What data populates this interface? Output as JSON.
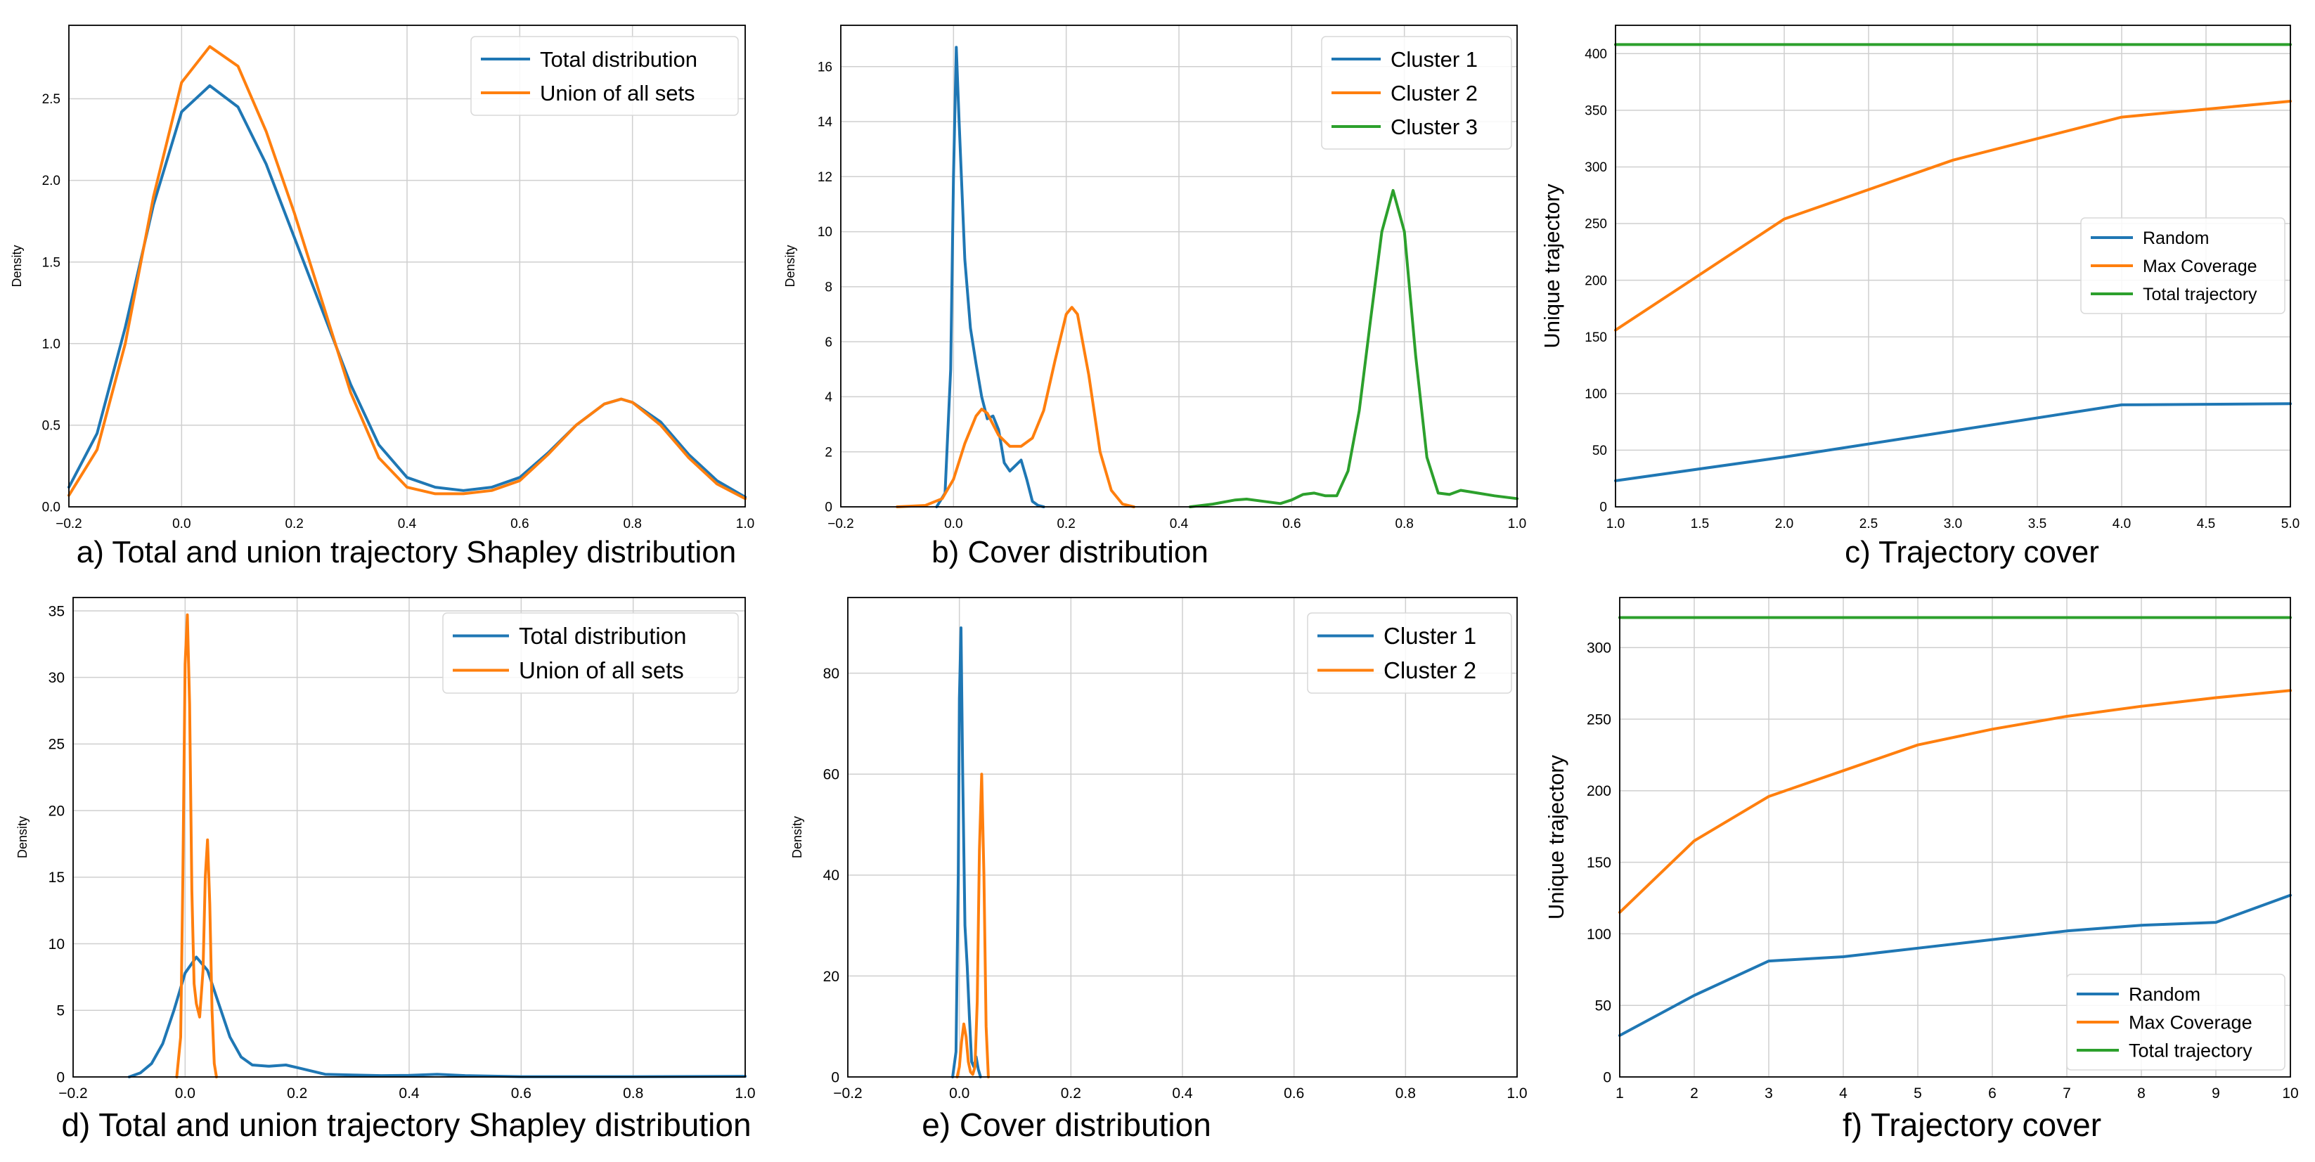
{
  "colors": {
    "blue": "#1f77b4",
    "orange": "#ff7f0e",
    "green": "#2ca02c",
    "grid": "#cfcfcf",
    "axis": "#000000"
  },
  "chart_data": [
    {
      "id": "a",
      "type": "line",
      "caption": "a) Total and union trajectory Shapley distribution",
      "xlabel": "",
      "ylabel": "Density",
      "xlim": [
        -0.2,
        1.0
      ],
      "ylim": [
        0,
        2.95
      ],
      "xticks": [
        -0.2,
        0.0,
        0.2,
        0.4,
        0.6,
        0.8,
        1.0
      ],
      "xtick_labels": [
        "−0.2",
        "0.0",
        "0.2",
        "0.4",
        "0.6",
        "0.8",
        "1.0"
      ],
      "yticks": [
        0.0,
        0.5,
        1.0,
        1.5,
        2.0,
        2.5
      ],
      "ytick_labels": [
        "0.0",
        "0.5",
        "1.0",
        "1.5",
        "2.0",
        "2.5"
      ],
      "legend": "top-right",
      "series": [
        {
          "name": "Total distribution",
          "color": "blue",
          "x": [
            -0.2,
            -0.15,
            -0.1,
            -0.05,
            0.0,
            0.05,
            0.1,
            0.15,
            0.2,
            0.25,
            0.3,
            0.35,
            0.4,
            0.45,
            0.5,
            0.55,
            0.6,
            0.65,
            0.7,
            0.75,
            0.78,
            0.8,
            0.85,
            0.9,
            0.95,
            1.0
          ],
          "y": [
            0.12,
            0.45,
            1.1,
            1.85,
            2.42,
            2.58,
            2.45,
            2.1,
            1.65,
            1.2,
            0.75,
            0.38,
            0.18,
            0.12,
            0.1,
            0.12,
            0.18,
            0.33,
            0.5,
            0.63,
            0.66,
            0.64,
            0.52,
            0.32,
            0.16,
            0.06
          ]
        },
        {
          "name": "Union of all sets",
          "color": "orange",
          "x": [
            -0.2,
            -0.15,
            -0.1,
            -0.05,
            0.0,
            0.05,
            0.1,
            0.15,
            0.2,
            0.25,
            0.3,
            0.35,
            0.4,
            0.45,
            0.5,
            0.55,
            0.6,
            0.65,
            0.7,
            0.75,
            0.78,
            0.8,
            0.85,
            0.9,
            0.95,
            1.0
          ],
          "y": [
            0.07,
            0.35,
            1.0,
            1.9,
            2.6,
            2.82,
            2.7,
            2.3,
            1.8,
            1.25,
            0.7,
            0.3,
            0.12,
            0.08,
            0.08,
            0.1,
            0.16,
            0.32,
            0.5,
            0.63,
            0.66,
            0.64,
            0.5,
            0.3,
            0.14,
            0.05
          ]
        }
      ]
    },
    {
      "id": "b",
      "type": "line",
      "caption": "b) Cover distribution",
      "xlabel": "",
      "ylabel": "Density",
      "xlim": [
        -0.2,
        1.0
      ],
      "ylim": [
        0,
        17.5
      ],
      "xticks": [
        -0.2,
        0.0,
        0.2,
        0.4,
        0.6,
        0.8,
        1.0
      ],
      "xtick_labels": [
        "−0.2",
        "0.0",
        "0.2",
        "0.4",
        "0.6",
        "0.8",
        "1.0"
      ],
      "yticks": [
        0,
        2,
        4,
        6,
        8,
        10,
        12,
        14,
        16
      ],
      "ytick_labels": [
        "0",
        "2",
        "4",
        "6",
        "8",
        "10",
        "12",
        "14",
        "16"
      ],
      "legend": "top-right",
      "series": [
        {
          "name": "Cluster 1",
          "color": "blue",
          "x": [
            -0.03,
            -0.015,
            -0.005,
            0.0,
            0.005,
            0.01,
            0.02,
            0.03,
            0.04,
            0.05,
            0.06,
            0.07,
            0.08,
            0.09,
            0.1,
            0.11,
            0.12,
            0.13,
            0.14,
            0.15,
            0.16
          ],
          "y": [
            0,
            0.5,
            5.0,
            12.0,
            16.7,
            14.0,
            9.0,
            6.5,
            5.2,
            4.0,
            3.2,
            3.3,
            2.8,
            1.6,
            1.3,
            1.5,
            1.7,
            1.0,
            0.2,
            0.05,
            0
          ]
        },
        {
          "name": "Cluster 2",
          "color": "orange",
          "x": [
            -0.1,
            -0.05,
            -0.02,
            0.0,
            0.02,
            0.04,
            0.05,
            0.06,
            0.08,
            0.1,
            0.12,
            0.14,
            0.16,
            0.18,
            0.2,
            0.21,
            0.22,
            0.24,
            0.26,
            0.28,
            0.3,
            0.32
          ],
          "y": [
            0,
            0.05,
            0.3,
            1.0,
            2.3,
            3.3,
            3.55,
            3.4,
            2.6,
            2.2,
            2.2,
            2.5,
            3.5,
            5.3,
            7.0,
            7.25,
            7.0,
            4.8,
            2.0,
            0.6,
            0.1,
            0
          ]
        },
        {
          "name": "Cluster 3",
          "color": "green",
          "x": [
            0.42,
            0.46,
            0.5,
            0.52,
            0.55,
            0.58,
            0.6,
            0.62,
            0.64,
            0.66,
            0.68,
            0.7,
            0.72,
            0.74,
            0.76,
            0.78,
            0.8,
            0.82,
            0.84,
            0.86,
            0.88,
            0.9,
            0.93,
            0.96,
            1.0
          ],
          "y": [
            0,
            0.1,
            0.25,
            0.28,
            0.2,
            0.12,
            0.25,
            0.45,
            0.5,
            0.4,
            0.4,
            1.3,
            3.5,
            6.8,
            10.0,
            11.5,
            10.0,
            5.5,
            1.8,
            0.5,
            0.45,
            0.6,
            0.5,
            0.4,
            0.3
          ]
        }
      ]
    },
    {
      "id": "c",
      "type": "line",
      "caption": "c) Trajectory cover",
      "xlabel": "",
      "ylabel": "Unique trajectory",
      "xlim": [
        1.0,
        5.0
      ],
      "ylim": [
        0,
        425
      ],
      "xticks": [
        1.0,
        1.5,
        2.0,
        2.5,
        3.0,
        3.5,
        4.0,
        4.5,
        5.0
      ],
      "xtick_labels": [
        "1.0",
        "1.5",
        "2.0",
        "2.5",
        "3.0",
        "3.5",
        "4.0",
        "4.5",
        "5.0"
      ],
      "yticks": [
        0,
        50,
        100,
        150,
        200,
        250,
        300,
        350,
        400
      ],
      "ytick_labels": [
        "0",
        "50",
        "100",
        "150",
        "200",
        "250",
        "300",
        "350",
        "400"
      ],
      "legend": "center-right",
      "series": [
        {
          "name": "Random",
          "color": "blue",
          "x": [
            1,
            2,
            3,
            4,
            5
          ],
          "y": [
            23,
            44,
            67,
            90,
            91
          ]
        },
        {
          "name": "Max Coverage",
          "color": "orange",
          "x": [
            1,
            2,
            3,
            4,
            5
          ],
          "y": [
            156,
            254,
            306,
            344,
            358
          ]
        },
        {
          "name": "Total trajectory",
          "color": "green",
          "x": [
            1,
            5
          ],
          "y": [
            408,
            408
          ]
        }
      ]
    },
    {
      "id": "d",
      "type": "line",
      "caption": "d) Total and union trajectory Shapley distribution",
      "xlabel": "",
      "ylabel": "Density",
      "xlim": [
        -0.2,
        1.0
      ],
      "ylim": [
        0,
        36
      ],
      "xticks": [
        -0.2,
        0.0,
        0.2,
        0.4,
        0.6,
        0.8,
        1.0
      ],
      "xtick_labels": [
        "−0.2",
        "0.0",
        "0.2",
        "0.4",
        "0.6",
        "0.8",
        "1.0"
      ],
      "yticks": [
        0,
        5,
        10,
        15,
        20,
        25,
        30,
        35
      ],
      "ytick_labels": [
        "0",
        "5",
        "10",
        "15",
        "20",
        "25",
        "30",
        "35"
      ],
      "legend": "top-right",
      "series": [
        {
          "name": "Total distribution",
          "color": "blue",
          "x": [
            -0.1,
            -0.08,
            -0.06,
            -0.04,
            -0.02,
            0.0,
            0.02,
            0.04,
            0.06,
            0.08,
            0.1,
            0.12,
            0.15,
            0.18,
            0.2,
            0.25,
            0.3,
            0.35,
            0.4,
            0.45,
            0.5,
            0.6,
            0.8,
            1.0
          ],
          "y": [
            0,
            0.3,
            1.0,
            2.5,
            5.0,
            7.8,
            9.0,
            8.0,
            5.5,
            3.0,
            1.5,
            0.9,
            0.8,
            0.9,
            0.7,
            0.2,
            0.15,
            0.1,
            0.12,
            0.2,
            0.1,
            0.02,
            0.02,
            0.05
          ]
        },
        {
          "name": "Union of all sets",
          "color": "orange",
          "x": [
            -0.015,
            -0.008,
            -0.004,
            0.0,
            0.004,
            0.008,
            0.012,
            0.016,
            0.02,
            0.026,
            0.032,
            0.036,
            0.04,
            0.044,
            0.048,
            0.052,
            0.056
          ],
          "y": [
            0,
            3,
            15,
            31,
            34.7,
            28,
            14,
            7,
            5.5,
            4.5,
            8,
            15,
            17.8,
            13,
            5,
            1,
            0
          ]
        }
      ]
    },
    {
      "id": "e",
      "type": "line",
      "caption": "e) Cover distribution",
      "xlabel": "",
      "ylabel": "Density",
      "xlim": [
        -0.2,
        1.0
      ],
      "ylim": [
        0,
        95
      ],
      "xticks": [
        -0.2,
        0.0,
        0.2,
        0.4,
        0.6,
        0.8,
        1.0
      ],
      "xtick_labels": [
        "−0.2",
        "0.0",
        "0.2",
        "0.4",
        "0.6",
        "0.8",
        "1.0"
      ],
      "yticks": [
        0,
        20,
        40,
        60,
        80
      ],
      "ytick_labels": [
        "0",
        "20",
        "40",
        "60",
        "80"
      ],
      "legend": "top-right",
      "series": [
        {
          "name": "Cluster 1",
          "color": "blue",
          "x": [
            -0.012,
            -0.006,
            -0.002,
            0.0,
            0.003,
            0.006,
            0.01,
            0.014,
            0.018,
            0.022,
            0.026,
            0.03,
            0.034,
            0.038
          ],
          "y": [
            0,
            5,
            40,
            75,
            89,
            60,
            30,
            22,
            12,
            3,
            2,
            4,
            1.5,
            0
          ]
        },
        {
          "name": "Cluster 2",
          "color": "orange",
          "x": [
            -0.004,
            0.0,
            0.004,
            0.008,
            0.012,
            0.016,
            0.02,
            0.024,
            0.028,
            0.032,
            0.036,
            0.04,
            0.044,
            0.048,
            0.052
          ],
          "y": [
            0,
            2,
            7,
            10.5,
            8,
            3,
            1,
            0.5,
            2,
            15,
            45,
            60,
            40,
            10,
            0
          ]
        }
      ]
    },
    {
      "id": "f",
      "type": "line",
      "caption": "f) Trajectory cover",
      "xlabel": "",
      "ylabel": "Unique trajectory",
      "xlim": [
        1,
        10
      ],
      "ylim": [
        0,
        335
      ],
      "xticks": [
        1,
        2,
        3,
        4,
        5,
        6,
        7,
        8,
        9,
        10
      ],
      "xtick_labels": [
        "1",
        "2",
        "3",
        "4",
        "5",
        "6",
        "7",
        "8",
        "9",
        "10"
      ],
      "yticks": [
        0,
        50,
        100,
        150,
        200,
        250,
        300
      ],
      "ytick_labels": [
        "0",
        "50",
        "100",
        "150",
        "200",
        "250",
        "300"
      ],
      "legend": "bottom-right",
      "series": [
        {
          "name": "Random",
          "color": "blue",
          "x": [
            1,
            2,
            3,
            4,
            5,
            6,
            7,
            8,
            9,
            10
          ],
          "y": [
            29,
            57,
            81,
            84,
            90,
            96,
            102,
            106,
            108,
            127
          ]
        },
        {
          "name": "Max Coverage",
          "color": "orange",
          "x": [
            1,
            2,
            3,
            4,
            5,
            6,
            7,
            8,
            9,
            10
          ],
          "y": [
            115,
            165,
            196,
            214,
            232,
            243,
            252,
            259,
            265,
            270
          ]
        },
        {
          "name": "Total trajectory",
          "color": "green",
          "x": [
            1,
            10
          ],
          "y": [
            321,
            321
          ]
        }
      ]
    }
  ]
}
